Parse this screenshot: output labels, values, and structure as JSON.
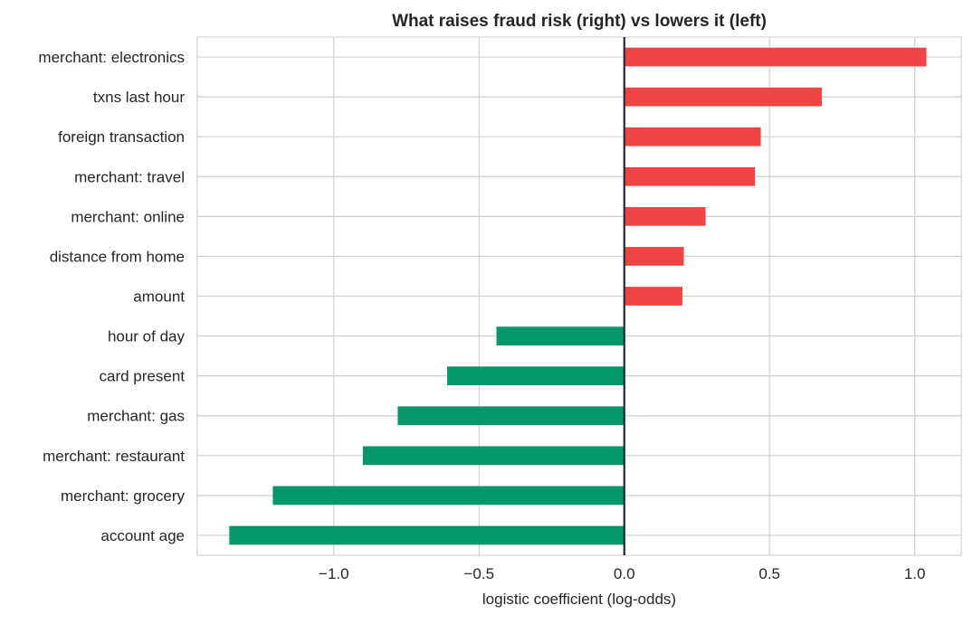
{
  "chart_data": {
    "type": "bar",
    "orientation": "horizontal",
    "title": "What raises fraud risk (right) vs lowers it (left)",
    "xlabel": "logistic coefficient (log-odds)",
    "ylabel": "",
    "xlim": [
      -1.47,
      1.16
    ],
    "xticks": [
      -1.0,
      -0.5,
      0.0,
      0.5,
      1.0
    ],
    "xtick_labels": [
      "−1.0",
      "−0.5",
      "0.0",
      "0.5",
      "1.0"
    ],
    "grid": true,
    "categories": [
      "merchant: electronics",
      "txns last hour",
      "foreign transaction",
      "merchant: travel",
      "merchant: online",
      "distance from home",
      "amount",
      "hour of day",
      "card present",
      "merchant: gas",
      "merchant: restaurant",
      "merchant: grocery",
      "account age"
    ],
    "values": [
      1.04,
      0.68,
      0.47,
      0.45,
      0.28,
      0.205,
      0.2,
      -0.44,
      -0.61,
      -0.78,
      -0.9,
      -1.21,
      -1.36
    ],
    "colors": {
      "positive": "#ef4444",
      "negative": "#059669",
      "zero_line": "#1f2937"
    }
  }
}
